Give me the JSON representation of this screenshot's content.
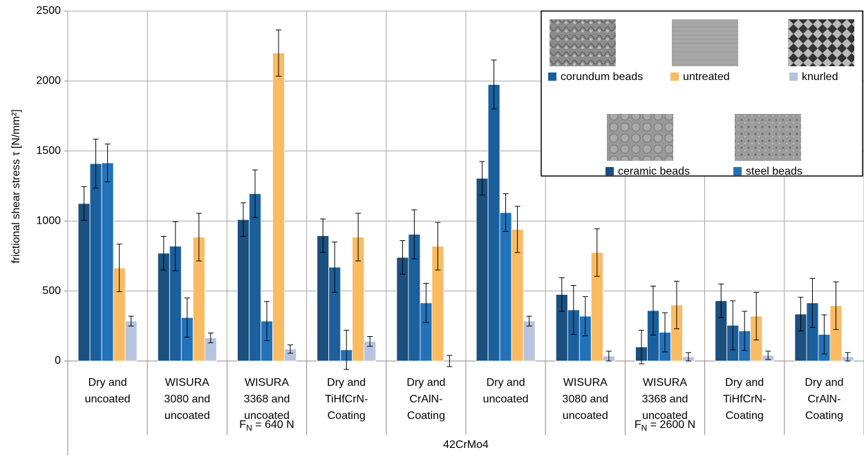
{
  "chart_data": {
    "type": "bar",
    "y_label": "frictional shear stress τ [N/mm²]",
    "ylim": [
      0,
      2500
    ],
    "yticks": [
      0,
      500,
      1000,
      1500,
      2000,
      2500
    ],
    "grid": true,
    "categories": [
      "Dry and\nuncoated",
      "WISURA\n3080 and\nuncoated",
      "WISURA\n3368 and\nuncoated",
      "Dry and\nTiHfCrN-\nCoating",
      "Dry and\nCrAlN-\nCoating",
      "Dry and\nuncoated",
      "WISURA\n3080 and\nuncoated",
      "WISURA\n3368 and\nuncoated",
      "Dry and\nTiHfCrN-\nCoating",
      "Dry and\nCrAlN-\nCoating"
    ],
    "groups": [
      {
        "symbol": "F",
        "subscript": "N",
        "label": " = 640 N",
        "size": 5
      },
      {
        "symbol": "F",
        "subscript": "N",
        "label": " = 2600 N",
        "size": 5
      }
    ],
    "outer_label": "42CrMo4",
    "series": [
      {
        "name": "ceramic beads",
        "color": "#1b4f7e",
        "values": [
          1125,
          770,
          1010,
          895,
          740,
          1305,
          475,
          100,
          430,
          335
        ],
        "errors": [
          120,
          120,
          120,
          120,
          120,
          120,
          120,
          120,
          120,
          120
        ]
      },
      {
        "name": "corundum beads",
        "color": "#1b5f9c",
        "values": [
          1410,
          820,
          1195,
          670,
          905,
          1975,
          365,
          360,
          255,
          415
        ],
        "errors": [
          175,
          175,
          170,
          180,
          175,
          175,
          175,
          175,
          175,
          175
        ]
      },
      {
        "name": "steel beads",
        "color": "#2272b8",
        "values": [
          1415,
          310,
          285,
          80,
          415,
          1060,
          320,
          205,
          215,
          190
        ],
        "errors": [
          135,
          140,
          140,
          140,
          140,
          135,
          140,
          140,
          140,
          140
        ]
      },
      {
        "name": "untreated",
        "color": "#fbbb63",
        "values": [
          665,
          885,
          2200,
          885,
          820,
          940,
          775,
          400,
          320,
          395
        ],
        "errors": [
          170,
          170,
          165,
          170,
          170,
          165,
          170,
          170,
          170,
          170
        ]
      },
      {
        "name": "knurled",
        "color": "#b7c4df",
        "values": [
          285,
          165,
          85,
          140,
          0,
          285,
          35,
          30,
          40,
          30
        ],
        "errors": [
          35,
          35,
          30,
          35,
          40,
          35,
          35,
          30,
          30,
          30
        ]
      }
    ]
  }
}
